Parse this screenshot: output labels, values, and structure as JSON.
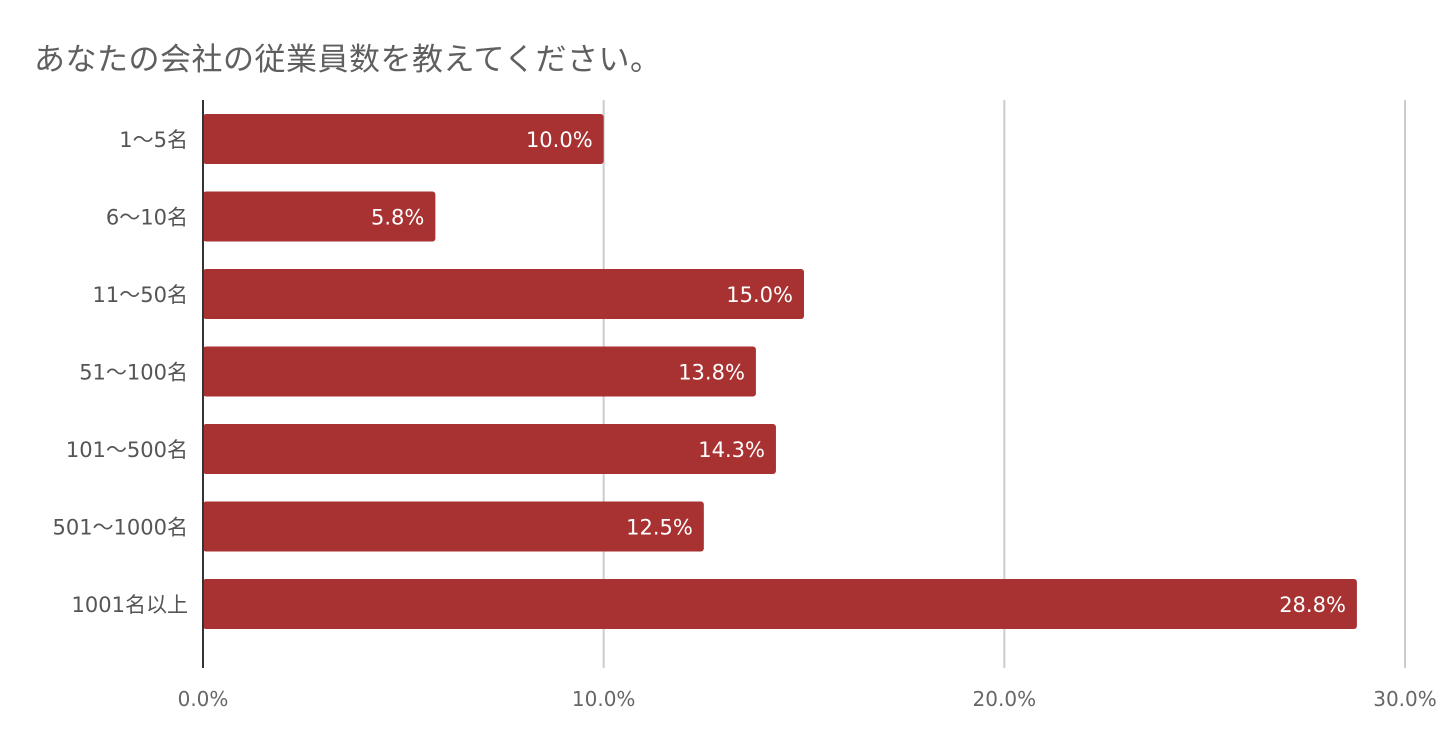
{
  "chart_data": {
    "type": "bar",
    "orientation": "horizontal",
    "title": "あなたの会社の従業員数を教えてください。",
    "categories": [
      "1〜5名",
      "6〜10名",
      "11〜50名",
      "51〜100名",
      "101〜500名",
      "501〜1000名",
      "1001名以上"
    ],
    "values": [
      10.0,
      5.8,
      15.0,
      13.8,
      14.3,
      12.5,
      28.8
    ],
    "data_labels": [
      "10.0%",
      "5.8%",
      "15.0%",
      "13.8%",
      "14.3%",
      "12.5%",
      "28.8%"
    ],
    "xlim": [
      0,
      30
    ],
    "xticks": [
      0,
      10,
      20,
      30
    ],
    "xtick_labels": [
      "0.0%",
      "10.0%",
      "20.0%",
      "30.0%"
    ],
    "xlabel": "",
    "ylabel": "",
    "grid": true,
    "legend": "none",
    "bar_color": "#a83232",
    "grid_color": "#cccccc",
    "axis_color": "#333333"
  }
}
